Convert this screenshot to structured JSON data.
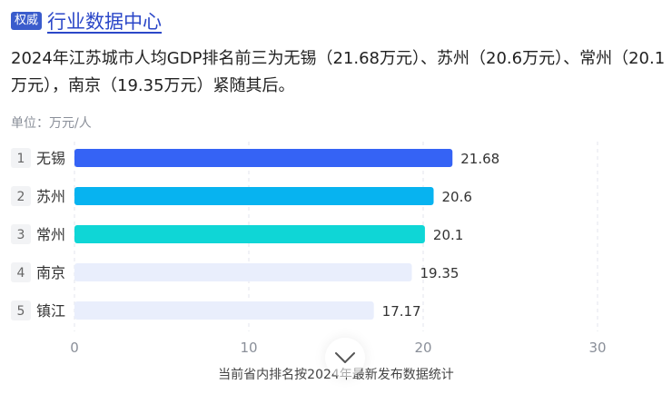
{
  "header": {
    "badge": "权威",
    "source_title": "行业数据中心"
  },
  "summary": "2024年江苏城市人均GDP排名前三为无锡（21.68万元）、苏州（20.6万元）、常州（20.1万元），南京（19.35万元）紧随其后。",
  "unit_label": "单位：万元/人",
  "footer_note": "当前省内排名按2024年最新发布数据统计",
  "expand_icon": "chevron-down-icon",
  "colors": {
    "bars": [
      "#3563f5",
      "#07b3f0",
      "#0fd6d6",
      "#e9eefc",
      "#e9eefc"
    ],
    "rank_box": "#f2f3f5",
    "grid": "#e3e6ec",
    "tick_text": "#8a8f99"
  },
  "chart_data": {
    "type": "bar",
    "orientation": "horizontal",
    "categories": [
      "无锡",
      "苏州",
      "常州",
      "南京",
      "镇江"
    ],
    "ranks": [
      "1",
      "2",
      "3",
      "4",
      "5"
    ],
    "values": [
      21.68,
      20.6,
      20.1,
      19.35,
      17.17
    ],
    "value_labels": [
      "21.68",
      "20.6",
      "20.1",
      "19.35",
      "17.17"
    ],
    "xlim": [
      0,
      30
    ],
    "xticks": [
      0,
      10,
      20,
      30
    ],
    "xtick_labels": [
      "0",
      "10",
      "20",
      "30"
    ],
    "grid": true,
    "title": "",
    "xlabel": "",
    "ylabel": ""
  }
}
